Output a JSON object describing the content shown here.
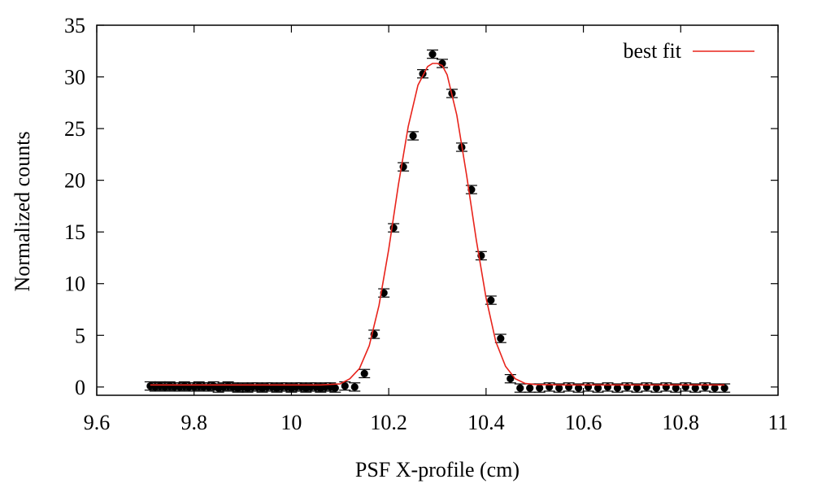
{
  "chart_data": {
    "type": "scatter",
    "title": "",
    "xlabel": "PSF X-profile (cm)",
    "ylabel": "Normalized counts",
    "xlim": [
      9.6,
      11
    ],
    "ylim": [
      -0.8,
      35
    ],
    "xticks": [
      9.6,
      9.8,
      10,
      10.2,
      10.4,
      10.6,
      10.8,
      11
    ],
    "xtick_labels": [
      "9.6",
      "9.8",
      "10",
      "10.2",
      "10.4",
      "10.6",
      "10.8",
      "11"
    ],
    "yticks": [
      0,
      5,
      10,
      15,
      20,
      25,
      30,
      35
    ],
    "ytick_labels": [
      "0",
      "5",
      "10",
      "15",
      "20",
      "25",
      "30",
      "35"
    ],
    "grid": false,
    "legend": {
      "position": "top-right",
      "entries": [
        "best fit"
      ]
    },
    "series": [
      {
        "name": "data",
        "kind": "points-with-errorbars",
        "color": "#000000",
        "x": [
          9.71,
          9.72,
          9.73,
          9.74,
          9.75,
          9.76,
          9.77,
          9.78,
          9.79,
          9.8,
          9.81,
          9.82,
          9.83,
          9.84,
          9.85,
          9.86,
          9.87,
          9.88,
          9.89,
          9.9,
          9.91,
          9.92,
          9.93,
          9.94,
          9.95,
          9.96,
          9.97,
          9.98,
          9.99,
          10.0,
          10.01,
          10.02,
          10.03,
          10.04,
          10.05,
          10.06,
          10.07,
          10.08,
          10.09,
          10.11,
          10.13,
          10.15,
          10.17,
          10.19,
          10.21,
          10.23,
          10.25,
          10.27,
          10.29,
          10.31,
          10.33,
          10.35,
          10.37,
          10.39,
          10.41,
          10.43,
          10.45,
          10.47,
          10.49,
          10.51,
          10.53,
          10.55,
          10.57,
          10.59,
          10.61,
          10.63,
          10.65,
          10.67,
          10.69,
          10.71,
          10.73,
          10.75,
          10.77,
          10.79,
          10.81,
          10.83,
          10.85,
          10.87,
          10.89
        ],
        "y": [
          0.1,
          0.0,
          0.1,
          0.0,
          0.1,
          0.0,
          0.0,
          0.1,
          0.0,
          0.0,
          0.1,
          0.0,
          0.0,
          0.1,
          -0.1,
          0.0,
          0.1,
          0.0,
          -0.1,
          0.0,
          -0.1,
          0.0,
          0.0,
          -0.1,
          0.0,
          0.0,
          -0.1,
          0.0,
          0.0,
          -0.1,
          0.0,
          0.0,
          -0.1,
          0.0,
          0.0,
          -0.1,
          0.0,
          0.0,
          -0.1,
          0.1,
          0.0,
          1.3,
          5.1,
          9.1,
          15.4,
          21.3,
          24.3,
          30.3,
          32.2,
          31.3,
          28.4,
          23.2,
          19.1,
          12.7,
          8.4,
          4.7,
          0.8,
          -0.1,
          -0.1,
          -0.1,
          0.0,
          -0.1,
          0.0,
          -0.1,
          0.0,
          -0.1,
          0.0,
          -0.1,
          0.0,
          -0.1,
          0.0,
          -0.1,
          0.0,
          -0.1,
          0.0,
          -0.1,
          0.0,
          -0.1,
          -0.1
        ],
        "yerr": [
          0.4,
          0.4,
          0.4,
          0.4,
          0.4,
          0.4,
          0.4,
          0.4,
          0.4,
          0.4,
          0.4,
          0.4,
          0.4,
          0.4,
          0.4,
          0.4,
          0.4,
          0.4,
          0.4,
          0.4,
          0.4,
          0.4,
          0.4,
          0.4,
          0.4,
          0.4,
          0.4,
          0.4,
          0.4,
          0.4,
          0.4,
          0.4,
          0.4,
          0.4,
          0.4,
          0.4,
          0.4,
          0.4,
          0.4,
          0.4,
          0.4,
          0.4,
          0.4,
          0.4,
          0.4,
          0.4,
          0.4,
          0.4,
          0.4,
          0.4,
          0.4,
          0.4,
          0.4,
          0.4,
          0.4,
          0.4,
          0.4,
          0.4,
          0.4,
          0.4,
          0.4,
          0.4,
          0.4,
          0.4,
          0.4,
          0.4,
          0.4,
          0.4,
          0.4,
          0.4,
          0.4,
          0.4,
          0.4,
          0.4,
          0.4,
          0.4,
          0.4,
          0.4,
          0.4
        ]
      },
      {
        "name": "best fit",
        "kind": "line",
        "color": "#e8231b",
        "x": [
          9.71,
          10.0,
          10.06,
          10.1,
          10.12,
          10.14,
          10.16,
          10.18,
          10.2,
          10.22,
          10.24,
          10.26,
          10.28,
          10.29,
          10.3,
          10.31,
          10.32,
          10.34,
          10.36,
          10.38,
          10.4,
          10.42,
          10.44,
          10.46,
          10.48,
          10.5,
          10.56,
          10.89
        ],
        "y": [
          0.2,
          0.2,
          0.2,
          0.3,
          0.8,
          1.8,
          4.0,
          7.9,
          13.3,
          19.6,
          25.2,
          29.2,
          31.0,
          31.3,
          31.3,
          31.1,
          30.2,
          26.3,
          20.5,
          14.2,
          8.6,
          4.4,
          2.0,
          0.8,
          0.35,
          0.25,
          0.2,
          0.2
        ]
      }
    ]
  }
}
